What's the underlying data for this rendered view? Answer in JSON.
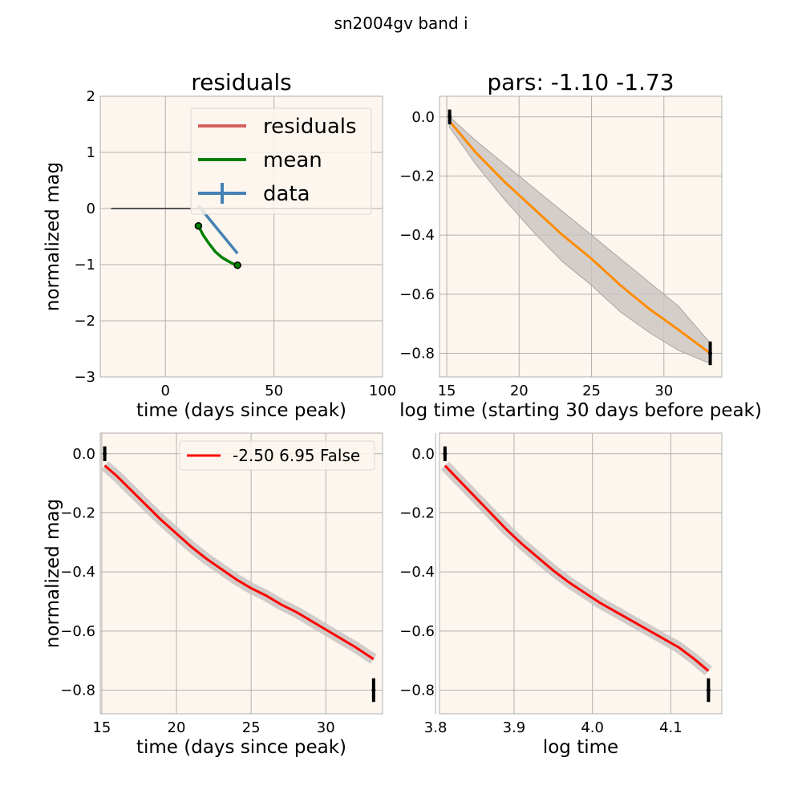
{
  "figure": {
    "suptitle": "sn2004gv band i"
  },
  "colors": {
    "background": "#fdf6ee",
    "grid": "#b0b0b0",
    "residuals": "#d45f5f",
    "mean": "#008000",
    "data": "#4682b4",
    "fit_orange": "#ff8c00",
    "fit_red": "#ff0000",
    "band": "#c9c4c2",
    "errorbar": "#000000",
    "zero_line": "#555555"
  },
  "chart_data": [
    {
      "id": "residuals",
      "type": "line",
      "title": "residuals",
      "xlabel": "time (days since peak)",
      "ylabel": "normalized mag",
      "xlim": [
        -30,
        100
      ],
      "ylim": [
        -3,
        2
      ],
      "xticks": [
        0,
        50,
        100
      ],
      "yticks": [
        -3,
        -2,
        -1,
        0,
        1,
        2
      ],
      "xtick_labels": [
        "0",
        "50",
        "100"
      ],
      "ytick_labels": [
        "−3",
        "−2",
        "−1",
        "0",
        "1",
        "2"
      ],
      "grid": true,
      "legend": {
        "placement": "upper right",
        "entries": [
          "residuals",
          "mean",
          "data"
        ]
      },
      "series": [
        {
          "name": "residuals",
          "x": [
            -25,
            95
          ],
          "y": [
            0,
            0
          ]
        },
        {
          "name": "mean",
          "x": [
            15.2,
            17.5,
            20,
            23,
            26,
            29,
            31.5,
            33.2
          ],
          "y": [
            -0.31,
            -0.48,
            -0.62,
            -0.77,
            -0.87,
            -0.94,
            -0.99,
            -1.01
          ]
        },
        {
          "name": "data",
          "x": [
            15.2,
            33.2
          ],
          "y": [
            0.05,
            -0.8
          ]
        }
      ],
      "points": {
        "x": [
          15.2,
          33.2
        ],
        "y": [
          -0.31,
          -1.01
        ]
      }
    },
    {
      "id": "pars",
      "type": "line",
      "title": "pars: -1.10 -1.73",
      "xlabel": "log time (starting 30 days before peak)",
      "ylabel": "",
      "xlim": [
        14.5,
        34
      ],
      "ylim": [
        -0.88,
        0.07
      ],
      "xticks": [
        15,
        20,
        25,
        30
      ],
      "yticks": [
        0,
        -0.2,
        -0.4,
        -0.6,
        -0.8
      ],
      "xtick_labels": [
        "15",
        "20",
        "25",
        "30"
      ],
      "ytick_labels": [
        "0.0",
        "−0.2",
        "−0.4",
        "−0.6",
        "−0.8"
      ],
      "grid": true,
      "fit": {
        "x": [
          15.2,
          17,
          19,
          21,
          23,
          25,
          27,
          29,
          31,
          33.2
        ],
        "y": [
          -0.015,
          -0.12,
          -0.22,
          -0.31,
          -0.4,
          -0.48,
          -0.57,
          -0.65,
          -0.72,
          -0.8
        ],
        "band_upper": [
          0.0,
          -0.08,
          -0.16,
          -0.24,
          -0.32,
          -0.4,
          -0.48,
          -0.56,
          -0.64,
          -0.765
        ],
        "band_lower": [
          -0.035,
          -0.16,
          -0.28,
          -0.39,
          -0.49,
          -0.57,
          -0.66,
          -0.73,
          -0.79,
          -0.835
        ]
      },
      "errorbars": [
        {
          "x": 15.2,
          "y": 0.0,
          "err": 0.025
        },
        {
          "x": 33.2,
          "y": -0.8,
          "err": 0.04
        }
      ]
    },
    {
      "id": "time_fit",
      "type": "line",
      "title": "",
      "xlabel": "time (days since peak)",
      "ylabel": "normalized mag",
      "xlim": [
        14.9,
        33.8
      ],
      "ylim": [
        -0.88,
        0.07
      ],
      "xticks": [
        15,
        20,
        25,
        30
      ],
      "yticks": [
        0,
        -0.2,
        -0.4,
        -0.6,
        -0.8
      ],
      "xtick_labels": [
        "15",
        "20",
        "25",
        "30"
      ],
      "ytick_labels": [
        "0.0",
        "−0.2",
        "−0.4",
        "−0.6",
        "−0.8"
      ],
      "grid": true,
      "legend": {
        "placement": "upper right",
        "entries": [
          "-2.50 6.95 False"
        ]
      },
      "fit": {
        "x": [
          15.2,
          16,
          17,
          18,
          19,
          20,
          21,
          22,
          23,
          24,
          25,
          26,
          27,
          28,
          29,
          30,
          31,
          32,
          33.2
        ],
        "y": [
          -0.04,
          -0.075,
          -0.125,
          -0.175,
          -0.225,
          -0.27,
          -0.315,
          -0.355,
          -0.39,
          -0.425,
          -0.455,
          -0.48,
          -0.51,
          -0.535,
          -0.565,
          -0.595,
          -0.625,
          -0.655,
          -0.695
        ]
      },
      "errorbars": [
        {
          "x": 15.2,
          "y": 0.0,
          "err": 0.025
        },
        {
          "x": 33.2,
          "y": -0.8,
          "err": 0.04
        }
      ]
    },
    {
      "id": "log_time_fit",
      "type": "line",
      "title": "",
      "xlabel": "log time",
      "ylabel": "",
      "xlim": [
        3.805,
        4.165
      ],
      "ylim": [
        -0.88,
        0.07
      ],
      "xticks": [
        3.8,
        3.9,
        4.0,
        4.1
      ],
      "yticks": [
        0,
        -0.2,
        -0.4,
        -0.6,
        -0.8
      ],
      "xtick_labels": [
        "3.8",
        "3.9",
        "4.0",
        "4.1"
      ],
      "ytick_labels": [
        "0.0",
        "−0.2",
        "−0.4",
        "−0.6",
        "−0.8"
      ],
      "grid": true,
      "fit": {
        "x": [
          3.812,
          3.83,
          3.85,
          3.87,
          3.89,
          3.91,
          3.93,
          3.95,
          3.97,
          3.99,
          4.01,
          4.03,
          4.05,
          4.07,
          4.09,
          4.11,
          4.13,
          4.148
        ],
        "y": [
          -0.04,
          -0.09,
          -0.145,
          -0.2,
          -0.255,
          -0.305,
          -0.35,
          -0.395,
          -0.435,
          -0.47,
          -0.505,
          -0.535,
          -0.565,
          -0.595,
          -0.625,
          -0.655,
          -0.695,
          -0.735
        ]
      },
      "errorbars": [
        {
          "x": 3.812,
          "y": 0.0,
          "err": 0.025
        },
        {
          "x": 4.148,
          "y": -0.8,
          "err": 0.04
        }
      ]
    }
  ]
}
